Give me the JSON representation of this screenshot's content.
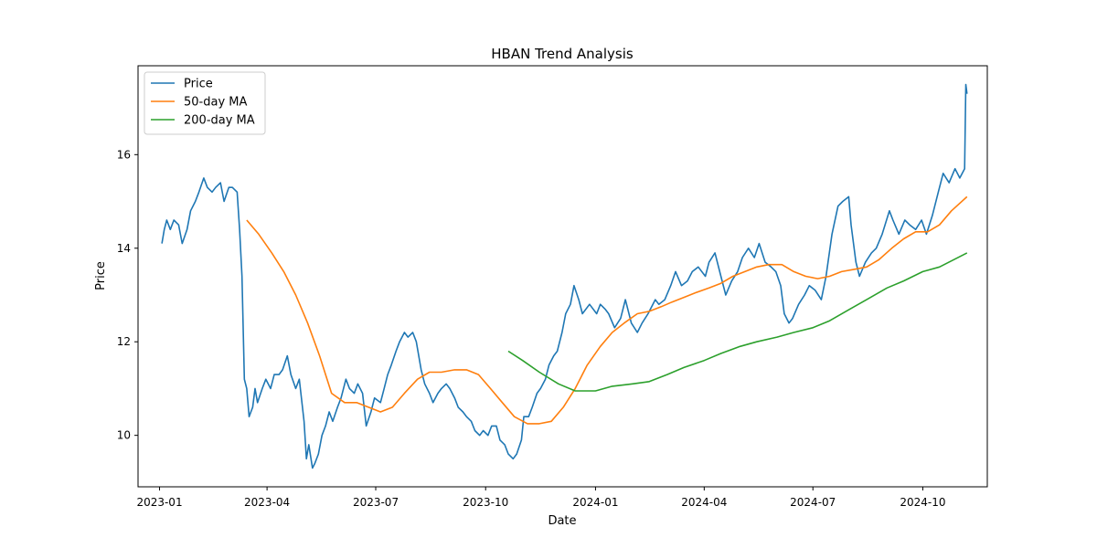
{
  "chart_data": {
    "type": "line",
    "title": "HBAN Trend Analysis",
    "xlabel": "Date",
    "ylabel": "Price",
    "x_range": [
      "2022-12-14",
      "2024-11-24"
    ],
    "ylim": [
      8.9,
      17.9
    ],
    "x_ticks": [
      {
        "date": "2023-01-01",
        "label": "2023-01"
      },
      {
        "date": "2023-04-01",
        "label": "2023-04"
      },
      {
        "date": "2023-07-01",
        "label": "2023-07"
      },
      {
        "date": "2023-10-01",
        "label": "2023-10"
      },
      {
        "date": "2024-01-01",
        "label": "2024-01"
      },
      {
        "date": "2024-04-01",
        "label": "2024-04"
      },
      {
        "date": "2024-07-01",
        "label": "2024-07"
      },
      {
        "date": "2024-10-01",
        "label": "2024-10"
      }
    ],
    "y_ticks": [
      10,
      12,
      14,
      16
    ],
    "grid": false,
    "legend_position": "top-left",
    "series": [
      {
        "name": "Price",
        "color": "#1f77b4",
        "points": [
          [
            "2023-01-03",
            14.1
          ],
          [
            "2023-01-05",
            14.4
          ],
          [
            "2023-01-07",
            14.6
          ],
          [
            "2023-01-10",
            14.4
          ],
          [
            "2023-01-13",
            14.6
          ],
          [
            "2023-01-17",
            14.5
          ],
          [
            "2023-01-20",
            14.1
          ],
          [
            "2023-01-24",
            14.4
          ],
          [
            "2023-01-27",
            14.8
          ],
          [
            "2023-01-31",
            15.0
          ],
          [
            "2023-02-03",
            15.2
          ],
          [
            "2023-02-07",
            15.5
          ],
          [
            "2023-02-10",
            15.3
          ],
          [
            "2023-02-14",
            15.2
          ],
          [
            "2023-02-17",
            15.3
          ],
          [
            "2023-02-21",
            15.4
          ],
          [
            "2023-02-24",
            15.0
          ],
          [
            "2023-02-28",
            15.3
          ],
          [
            "2023-03-03",
            15.3
          ],
          [
            "2023-03-07",
            15.2
          ],
          [
            "2023-03-09",
            14.4
          ],
          [
            "2023-03-11",
            13.4
          ],
          [
            "2023-03-13",
            11.2
          ],
          [
            "2023-03-15",
            11.0
          ],
          [
            "2023-03-17",
            10.4
          ],
          [
            "2023-03-20",
            10.6
          ],
          [
            "2023-03-22",
            11.0
          ],
          [
            "2023-03-24",
            10.7
          ],
          [
            "2023-03-28",
            11.0
          ],
          [
            "2023-03-31",
            11.2
          ],
          [
            "2023-04-04",
            11.0
          ],
          [
            "2023-04-07",
            11.3
          ],
          [
            "2023-04-11",
            11.3
          ],
          [
            "2023-04-14",
            11.4
          ],
          [
            "2023-04-18",
            11.7
          ],
          [
            "2023-04-21",
            11.3
          ],
          [
            "2023-04-25",
            11.0
          ],
          [
            "2023-04-28",
            11.2
          ],
          [
            "2023-05-02",
            10.3
          ],
          [
            "2023-05-04",
            9.5
          ],
          [
            "2023-05-06",
            9.8
          ],
          [
            "2023-05-09",
            9.3
          ],
          [
            "2023-05-11",
            9.4
          ],
          [
            "2023-05-14",
            9.6
          ],
          [
            "2023-05-17",
            10.0
          ],
          [
            "2023-05-20",
            10.2
          ],
          [
            "2023-05-23",
            10.5
          ],
          [
            "2023-05-26",
            10.3
          ],
          [
            "2023-05-30",
            10.6
          ],
          [
            "2023-06-02",
            10.8
          ],
          [
            "2023-06-06",
            11.2
          ],
          [
            "2023-06-09",
            11.0
          ],
          [
            "2023-06-13",
            10.9
          ],
          [
            "2023-06-16",
            11.1
          ],
          [
            "2023-06-20",
            10.9
          ],
          [
            "2023-06-23",
            10.2
          ],
          [
            "2023-06-27",
            10.5
          ],
          [
            "2023-06-30",
            10.8
          ],
          [
            "2023-07-05",
            10.7
          ],
          [
            "2023-07-08",
            11.0
          ],
          [
            "2023-07-11",
            11.3
          ],
          [
            "2023-07-14",
            11.5
          ],
          [
            "2023-07-18",
            11.8
          ],
          [
            "2023-07-21",
            12.0
          ],
          [
            "2023-07-25",
            12.2
          ],
          [
            "2023-07-28",
            12.1
          ],
          [
            "2023-08-01",
            12.2
          ],
          [
            "2023-08-04",
            12.0
          ],
          [
            "2023-08-08",
            11.4
          ],
          [
            "2023-08-11",
            11.1
          ],
          [
            "2023-08-15",
            10.9
          ],
          [
            "2023-08-18",
            10.7
          ],
          [
            "2023-08-22",
            10.9
          ],
          [
            "2023-08-25",
            11.0
          ],
          [
            "2023-08-29",
            11.1
          ],
          [
            "2023-09-01",
            11.0
          ],
          [
            "2023-09-05",
            10.8
          ],
          [
            "2023-09-08",
            10.6
          ],
          [
            "2023-09-12",
            10.5
          ],
          [
            "2023-09-15",
            10.4
          ],
          [
            "2023-09-19",
            10.3
          ],
          [
            "2023-09-22",
            10.1
          ],
          [
            "2023-09-26",
            10.0
          ],
          [
            "2023-09-29",
            10.1
          ],
          [
            "2023-10-03",
            10.0
          ],
          [
            "2023-10-06",
            10.2
          ],
          [
            "2023-10-10",
            10.2
          ],
          [
            "2023-10-13",
            9.9
          ],
          [
            "2023-10-17",
            9.8
          ],
          [
            "2023-10-20",
            9.6
          ],
          [
            "2023-10-24",
            9.5
          ],
          [
            "2023-10-27",
            9.6
          ],
          [
            "2023-10-31",
            9.9
          ],
          [
            "2023-11-02",
            10.4
          ],
          [
            "2023-11-06",
            10.4
          ],
          [
            "2023-11-09",
            10.6
          ],
          [
            "2023-11-13",
            10.9
          ],
          [
            "2023-11-16",
            11.0
          ],
          [
            "2023-11-20",
            11.2
          ],
          [
            "2023-11-23",
            11.5
          ],
          [
            "2023-11-27",
            11.7
          ],
          [
            "2023-11-30",
            11.8
          ],
          [
            "2023-12-04",
            12.2
          ],
          [
            "2023-12-07",
            12.6
          ],
          [
            "2023-12-11",
            12.8
          ],
          [
            "2023-12-14",
            13.2
          ],
          [
            "2023-12-18",
            12.9
          ],
          [
            "2023-12-21",
            12.6
          ],
          [
            "2023-12-27",
            12.8
          ],
          [
            "2024-01-02",
            12.6
          ],
          [
            "2024-01-05",
            12.8
          ],
          [
            "2024-01-09",
            12.7
          ],
          [
            "2024-01-12",
            12.6
          ],
          [
            "2024-01-17",
            12.3
          ],
          [
            "2024-01-22",
            12.5
          ],
          [
            "2024-01-26",
            12.9
          ],
          [
            "2024-01-31",
            12.4
          ],
          [
            "2024-02-05",
            12.2
          ],
          [
            "2024-02-09",
            12.4
          ],
          [
            "2024-02-14",
            12.6
          ],
          [
            "2024-02-20",
            12.9
          ],
          [
            "2024-02-23",
            12.8
          ],
          [
            "2024-02-28",
            12.9
          ],
          [
            "2024-03-04",
            13.2
          ],
          [
            "2024-03-08",
            13.5
          ],
          [
            "2024-03-13",
            13.2
          ],
          [
            "2024-03-18",
            13.3
          ],
          [
            "2024-03-22",
            13.5
          ],
          [
            "2024-03-27",
            13.6
          ],
          [
            "2024-04-02",
            13.4
          ],
          [
            "2024-04-05",
            13.7
          ],
          [
            "2024-04-10",
            13.9
          ],
          [
            "2024-04-15",
            13.4
          ],
          [
            "2024-04-19",
            13.0
          ],
          [
            "2024-04-24",
            13.3
          ],
          [
            "2024-04-29",
            13.5
          ],
          [
            "2024-05-03",
            13.8
          ],
          [
            "2024-05-08",
            14.0
          ],
          [
            "2024-05-13",
            13.8
          ],
          [
            "2024-05-17",
            14.1
          ],
          [
            "2024-05-22",
            13.7
          ],
          [
            "2024-05-27",
            13.6
          ],
          [
            "2024-05-31",
            13.5
          ],
          [
            "2024-06-04",
            13.2
          ],
          [
            "2024-06-07",
            12.6
          ],
          [
            "2024-06-11",
            12.4
          ],
          [
            "2024-06-14",
            12.5
          ],
          [
            "2024-06-19",
            12.8
          ],
          [
            "2024-06-24",
            13.0
          ],
          [
            "2024-06-28",
            13.2
          ],
          [
            "2024-07-03",
            13.1
          ],
          [
            "2024-07-08",
            12.9
          ],
          [
            "2024-07-12",
            13.4
          ],
          [
            "2024-07-17",
            14.3
          ],
          [
            "2024-07-22",
            14.9
          ],
          [
            "2024-07-26",
            15.0
          ],
          [
            "2024-07-31",
            15.1
          ],
          [
            "2024-08-02",
            14.5
          ],
          [
            "2024-08-06",
            13.7
          ],
          [
            "2024-08-09",
            13.4
          ],
          [
            "2024-08-14",
            13.7
          ],
          [
            "2024-08-19",
            13.9
          ],
          [
            "2024-08-23",
            14.0
          ],
          [
            "2024-08-28",
            14.3
          ],
          [
            "2024-09-03",
            14.8
          ],
          [
            "2024-09-06",
            14.6
          ],
          [
            "2024-09-11",
            14.3
          ],
          [
            "2024-09-16",
            14.6
          ],
          [
            "2024-09-20",
            14.5
          ],
          [
            "2024-09-25",
            14.4
          ],
          [
            "2024-09-30",
            14.6
          ],
          [
            "2024-10-04",
            14.3
          ],
          [
            "2024-10-09",
            14.7
          ],
          [
            "2024-10-14",
            15.2
          ],
          [
            "2024-10-18",
            15.6
          ],
          [
            "2024-10-23",
            15.4
          ],
          [
            "2024-10-28",
            15.7
          ],
          [
            "2024-11-01",
            15.5
          ],
          [
            "2024-11-05",
            15.7
          ],
          [
            "2024-11-06",
            17.5
          ],
          [
            "2024-11-07",
            17.3
          ]
        ]
      },
      {
        "name": "50-day MA",
        "color": "#ff7f0e",
        "points": [
          [
            "2023-03-15",
            14.6
          ],
          [
            "2023-03-25",
            14.3
          ],
          [
            "2023-04-05",
            13.9
          ],
          [
            "2023-04-15",
            13.5
          ],
          [
            "2023-04-25",
            13.0
          ],
          [
            "2023-05-05",
            12.4
          ],
          [
            "2023-05-15",
            11.7
          ],
          [
            "2023-05-25",
            10.9
          ],
          [
            "2023-06-05",
            10.7
          ],
          [
            "2023-06-15",
            10.7
          ],
          [
            "2023-06-25",
            10.6
          ],
          [
            "2023-07-05",
            10.5
          ],
          [
            "2023-07-15",
            10.6
          ],
          [
            "2023-07-25",
            10.9
          ],
          [
            "2023-08-05",
            11.2
          ],
          [
            "2023-08-15",
            11.35
          ],
          [
            "2023-08-25",
            11.35
          ],
          [
            "2023-09-05",
            11.4
          ],
          [
            "2023-09-15",
            11.4
          ],
          [
            "2023-09-25",
            11.3
          ],
          [
            "2023-10-05",
            11.0
          ],
          [
            "2023-10-15",
            10.7
          ],
          [
            "2023-10-25",
            10.4
          ],
          [
            "2023-11-05",
            10.25
          ],
          [
            "2023-11-15",
            10.25
          ],
          [
            "2023-11-25",
            10.3
          ],
          [
            "2023-12-05",
            10.6
          ],
          [
            "2023-12-15",
            11.0
          ],
          [
            "2023-12-25",
            11.5
          ],
          [
            "2024-01-05",
            11.9
          ],
          [
            "2024-01-15",
            12.2
          ],
          [
            "2024-01-25",
            12.4
          ],
          [
            "2024-02-05",
            12.6
          ],
          [
            "2024-02-15",
            12.65
          ],
          [
            "2024-02-25",
            12.75
          ],
          [
            "2024-03-05",
            12.85
          ],
          [
            "2024-03-15",
            12.95
          ],
          [
            "2024-03-25",
            13.05
          ],
          [
            "2024-04-05",
            13.15
          ],
          [
            "2024-04-15",
            13.25
          ],
          [
            "2024-04-25",
            13.4
          ],
          [
            "2024-05-05",
            13.5
          ],
          [
            "2024-05-15",
            13.6
          ],
          [
            "2024-05-25",
            13.65
          ],
          [
            "2024-06-05",
            13.65
          ],
          [
            "2024-06-15",
            13.5
          ],
          [
            "2024-06-25",
            13.4
          ],
          [
            "2024-07-05",
            13.35
          ],
          [
            "2024-07-15",
            13.4
          ],
          [
            "2024-07-25",
            13.5
          ],
          [
            "2024-08-05",
            13.55
          ],
          [
            "2024-08-15",
            13.6
          ],
          [
            "2024-08-25",
            13.75
          ],
          [
            "2024-09-05",
            14.0
          ],
          [
            "2024-09-15",
            14.2
          ],
          [
            "2024-09-25",
            14.35
          ],
          [
            "2024-10-05",
            14.35
          ],
          [
            "2024-10-15",
            14.5
          ],
          [
            "2024-10-25",
            14.8
          ],
          [
            "2024-11-07",
            15.1
          ]
        ]
      },
      {
        "name": "200-day MA",
        "color": "#2ca02c",
        "points": [
          [
            "2023-10-20",
            11.8
          ],
          [
            "2023-11-01",
            11.6
          ],
          [
            "2023-11-15",
            11.35
          ],
          [
            "2023-12-01",
            11.1
          ],
          [
            "2023-12-15",
            10.95
          ],
          [
            "2024-01-01",
            10.95
          ],
          [
            "2024-01-15",
            11.05
          ],
          [
            "2024-02-01",
            11.1
          ],
          [
            "2024-02-15",
            11.15
          ],
          [
            "2024-03-01",
            11.3
          ],
          [
            "2024-03-15",
            11.45
          ],
          [
            "2024-04-01",
            11.6
          ],
          [
            "2024-04-15",
            11.75
          ],
          [
            "2024-05-01",
            11.9
          ],
          [
            "2024-05-15",
            12.0
          ],
          [
            "2024-06-01",
            12.1
          ],
          [
            "2024-06-15",
            12.2
          ],
          [
            "2024-07-01",
            12.3
          ],
          [
            "2024-07-15",
            12.45
          ],
          [
            "2024-08-01",
            12.7
          ],
          [
            "2024-08-15",
            12.9
          ],
          [
            "2024-09-01",
            13.15
          ],
          [
            "2024-09-15",
            13.3
          ],
          [
            "2024-10-01",
            13.5
          ],
          [
            "2024-10-15",
            13.6
          ],
          [
            "2024-11-07",
            13.9
          ]
        ]
      }
    ]
  }
}
